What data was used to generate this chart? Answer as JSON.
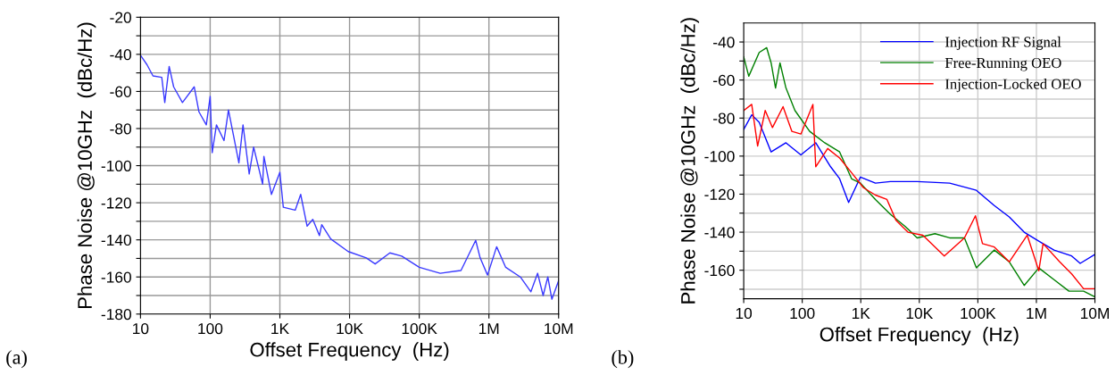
{
  "chart_data": [
    {
      "type": "line",
      "xlabel": "Offset Frequency  (Hz)",
      "ylabel": "Phase Noise @10GHz  (dBc/Hz)",
      "log": "x",
      "grid": true,
      "legend": false,
      "annotations": [
        "(a)"
      ],
      "xlim": [
        10,
        10000000
      ],
      "ylim": [
        -180,
        -20
      ],
      "xticks": [
        {
          "value": 10,
          "label": "10"
        },
        {
          "value": 100,
          "label": "100"
        },
        {
          "value": 1000,
          "label": "1K"
        },
        {
          "value": 10000,
          "label": "10K"
        },
        {
          "value": 100000,
          "label": "100K"
        },
        {
          "value": 1000000,
          "label": "1M"
        },
        {
          "value": 10000000,
          "label": "10M"
        }
      ],
      "yticks": [
        -180,
        {
          "value": -170,
          "label": null
        },
        -160,
        {
          "value": -150,
          "label": null
        },
        -140,
        {
          "value": -130,
          "label": null
        },
        -120,
        {
          "value": -110,
          "label": null
        },
        -100,
        {
          "value": -90,
          "label": null
        },
        -80,
        {
          "value": -70,
          "label": null
        },
        -60,
        {
          "value": -50,
          "label": null
        },
        -40,
        {
          "value": -30,
          "label": null
        },
        -20
      ],
      "series": [
        {
          "color": "#3a3aff",
          "x": [
            10,
            12.4,
            15.1,
            20.2,
            22.3,
            25.8,
            29.9,
            40,
            59,
            69,
            88,
            100,
            107,
            123,
            158,
            183,
            258,
            296,
            363,
            420,
            566,
            590,
            757,
            1000,
            1120,
            1660,
            1990,
            2460,
            2970,
            3700,
            3990,
            5370,
            9570,
            17400,
            23300,
            37900,
            56100,
            100000,
            200000,
            397000,
            646000,
            748000,
            955000,
            1290000,
            1740000,
            2820000,
            4000000,
            5000000,
            6000000,
            7000000,
            8000000,
            10000000
          ],
          "values": [
            -40.5,
            -45.6,
            -51.6,
            -52.4,
            -66,
            -46.5,
            -57.5,
            -66,
            -57.5,
            -71,
            -78,
            -62.7,
            -93,
            -78,
            -86.5,
            -70,
            -98.5,
            -78,
            -104.5,
            -90,
            -110,
            -95,
            -115.5,
            -103.6,
            -122.4,
            -124,
            -115.5,
            -132.6,
            -129,
            -137.7,
            -131.8,
            -139.5,
            -146.3,
            -149.7,
            -153,
            -147,
            -148.8,
            -154.8,
            -158,
            -156.5,
            -140.3,
            -149.7,
            -159,
            -143.7,
            -154.8,
            -160,
            -168,
            -158,
            -170,
            -160,
            -172,
            -162
          ]
        }
      ]
    },
    {
      "type": "line",
      "xlabel": "Offset Frequency  (Hz)",
      "ylabel": "Phase Noise @10GHz  (dBc/Hz)",
      "log": "x",
      "grid": true,
      "legend": "top right",
      "annotations": [
        "(b)"
      ],
      "xlim": [
        10,
        10000000
      ],
      "ylim": [
        -175,
        -30
      ],
      "xticks": [
        {
          "value": 10,
          "label": "10"
        },
        {
          "value": 100,
          "label": "100"
        },
        {
          "value": 1000,
          "label": "1K"
        },
        {
          "value": 10000,
          "label": "10K"
        },
        {
          "value": 100000,
          "label": "100K"
        },
        {
          "value": 1000000,
          "label": "1M"
        },
        {
          "value": 10000000,
          "label": "10M"
        }
      ],
      "yticks": [
        {
          "value": -170,
          "label": null
        },
        -160,
        {
          "value": -150,
          "label": null
        },
        -140,
        {
          "value": -130,
          "label": null
        },
        -120,
        {
          "value": -110,
          "label": null
        },
        -100,
        {
          "value": -90,
          "label": null
        },
        -80,
        {
          "value": -70,
          "label": null
        },
        -60,
        {
          "value": -50,
          "label": null
        },
        -40
      ],
      "series": [
        {
          "name": "Injection RF Signal",
          "color": "#0000ff",
          "x": [
            10,
            13.7,
            18.4,
            29.4,
            52.7,
            94.8,
            170,
            305,
            435,
            620,
            987,
            1780,
            3200,
            9200,
            33000,
            94500,
            191000,
            344000,
            619000,
            1100000,
            2000000,
            4000000,
            5600000,
            10000000
          ],
          "values": [
            -86,
            -78.3,
            -82.2,
            -97.8,
            -93,
            -99.4,
            -93,
            -105.6,
            -111.9,
            -124.4,
            -111,
            -114.2,
            -113.4,
            -113.4,
            -114.2,
            -118,
            -126,
            -132,
            -140,
            -144.7,
            -149.4,
            -152.5,
            -156.4,
            -151.7
          ]
        },
        {
          "name": "Free-Running OEO",
          "color": "#008000",
          "x": [
            10,
            12.2,
            18.4,
            24.7,
            29.4,
            35,
            41.7,
            52.7,
            75,
            134,
            242,
            435,
            700,
            987,
            1780,
            3200,
            5700,
            9200,
            18500,
            33000,
            59000,
            94500,
            191000,
            344000,
            619000,
            1100000,
            2000000,
            3600000,
            6400000,
            10000000
          ],
          "values": [
            -47.8,
            -58,
            -45.5,
            -43,
            -51,
            -64.2,
            -51,
            -64.2,
            -76,
            -87,
            -93,
            -97.8,
            -112,
            -114.2,
            -122.8,
            -130.6,
            -136.9,
            -143,
            -140.8,
            -143,
            -143,
            -158.8,
            -149.4,
            -155.6,
            -168,
            -158.8,
            -165,
            -171,
            -171,
            -174
          ]
        },
        {
          "name": "Injection-Locked OEO",
          "color": "#ff0000",
          "x": [
            10,
            13.7,
            17.3,
            23.3,
            31,
            47,
            66.6,
            94.8,
            152,
            170,
            272,
            435,
            700,
            1110,
            1780,
            2800,
            4000,
            6400,
            11500,
            26700,
            59000,
            91000,
            120000,
            191000,
            344000,
            698000,
            1100000,
            1300000,
            2500000,
            4000000,
            6400000,
            10000000
          ],
          "values": [
            -76,
            -72.8,
            -94.7,
            -76,
            -85,
            -74,
            -87,
            -88.4,
            -72.8,
            -105.6,
            -96,
            -101,
            -108.8,
            -116.6,
            -120.5,
            -122.8,
            -133.8,
            -140,
            -141.6,
            -152.5,
            -143,
            -131.4,
            -146,
            -147.8,
            -155.6,
            -141.6,
            -160.3,
            -146,
            -155.6,
            -161.9,
            -169.7,
            -169.7
          ]
        }
      ]
    }
  ]
}
